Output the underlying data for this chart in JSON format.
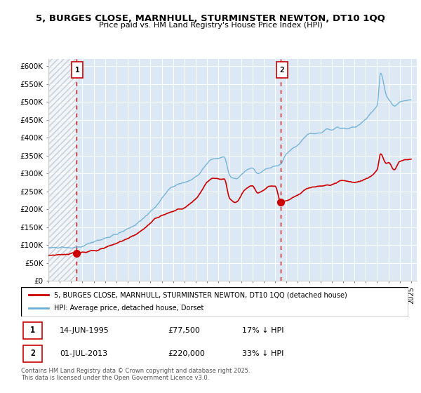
{
  "title1": "5, BURGES CLOSE, MARNHULL, STURMINSTER NEWTON, DT10 1QQ",
  "title2": "Price paid vs. HM Land Registry's House Price Index (HPI)",
  "ylabel_ticks": [
    "£0",
    "£50K",
    "£100K",
    "£150K",
    "£200K",
    "£250K",
    "£300K",
    "£350K",
    "£400K",
    "£450K",
    "£500K",
    "£550K",
    "£600K"
  ],
  "ylim": [
    0,
    620000
  ],
  "xlim_start": 1993.0,
  "xlim_end": 2025.5,
  "bg_color": "#dce9f5",
  "hpi_color": "#6baed6",
  "price_color": "#cc0000",
  "marker1_date": 1995.45,
  "marker1_price": 77500,
  "marker2_date": 2013.5,
  "marker2_price": 220000,
  "legend_label1": "5, BURGES CLOSE, MARNHULL, STURMINSTER NEWTON, DT10 1QQ (detached house)",
  "legend_label2": "HPI: Average price, detached house, Dorset",
  "footnote": "Contains HM Land Registry data © Crown copyright and database right 2025.\nThis data is licensed under the Open Government Licence v3.0.",
  "table_rows": [
    {
      "num": "1",
      "date": "14-JUN-1995",
      "price": "£77,500",
      "hpi": "17% ↓ HPI"
    },
    {
      "num": "2",
      "date": "01-JUL-2013",
      "price": "£220,000",
      "hpi": "33% ↓ HPI"
    }
  ],
  "hpi_keypoints": [
    [
      1993.0,
      93000
    ],
    [
      1995.45,
      93000
    ],
    [
      1997.0,
      110000
    ],
    [
      1999.0,
      130000
    ],
    [
      2001.0,
      165000
    ],
    [
      2002.5,
      210000
    ],
    [
      2004.0,
      265000
    ],
    [
      2005.0,
      275000
    ],
    [
      2006.0,
      290000
    ],
    [
      2007.5,
      340000
    ],
    [
      2008.5,
      345000
    ],
    [
      2009.0,
      295000
    ],
    [
      2009.5,
      285000
    ],
    [
      2010.5,
      310000
    ],
    [
      2011.0,
      315000
    ],
    [
      2011.5,
      300000
    ],
    [
      2012.0,
      310000
    ],
    [
      2013.0,
      320000
    ],
    [
      2013.5,
      328000
    ],
    [
      2014.0,
      355000
    ],
    [
      2015.0,
      380000
    ],
    [
      2016.0,
      410000
    ],
    [
      2017.0,
      415000
    ],
    [
      2017.5,
      425000
    ],
    [
      2018.0,
      420000
    ],
    [
      2018.5,
      430000
    ],
    [
      2019.0,
      425000
    ],
    [
      2020.0,
      430000
    ],
    [
      2021.0,
      450000
    ],
    [
      2021.5,
      470000
    ],
    [
      2022.0,
      490000
    ],
    [
      2022.3,
      580000
    ],
    [
      2022.8,
      520000
    ],
    [
      2023.0,
      510000
    ],
    [
      2023.5,
      490000
    ],
    [
      2024.0,
      500000
    ],
    [
      2025.0,
      505000
    ]
  ],
  "price_keypoints": [
    [
      1993.0,
      72000
    ],
    [
      1995.45,
      77500
    ],
    [
      1997.0,
      85000
    ],
    [
      1999.0,
      105000
    ],
    [
      2001.0,
      135000
    ],
    [
      2002.5,
      175000
    ],
    [
      2004.0,
      195000
    ],
    [
      2005.0,
      205000
    ],
    [
      2006.0,
      230000
    ],
    [
      2007.5,
      285000
    ],
    [
      2008.5,
      285000
    ],
    [
      2009.0,
      230000
    ],
    [
      2009.5,
      220000
    ],
    [
      2010.5,
      260000
    ],
    [
      2011.0,
      265000
    ],
    [
      2011.5,
      245000
    ],
    [
      2012.0,
      255000
    ],
    [
      2012.5,
      265000
    ],
    [
      2013.0,
      265000
    ],
    [
      2013.5,
      220000
    ],
    [
      2014.0,
      225000
    ],
    [
      2015.0,
      240000
    ],
    [
      2016.0,
      260000
    ],
    [
      2017.0,
      265000
    ],
    [
      2018.0,
      270000
    ],
    [
      2019.0,
      280000
    ],
    [
      2020.0,
      275000
    ],
    [
      2021.0,
      285000
    ],
    [
      2021.5,
      295000
    ],
    [
      2022.0,
      310000
    ],
    [
      2022.3,
      355000
    ],
    [
      2022.8,
      330000
    ],
    [
      2023.0,
      330000
    ],
    [
      2023.5,
      310000
    ],
    [
      2024.0,
      335000
    ],
    [
      2025.0,
      340000
    ]
  ]
}
